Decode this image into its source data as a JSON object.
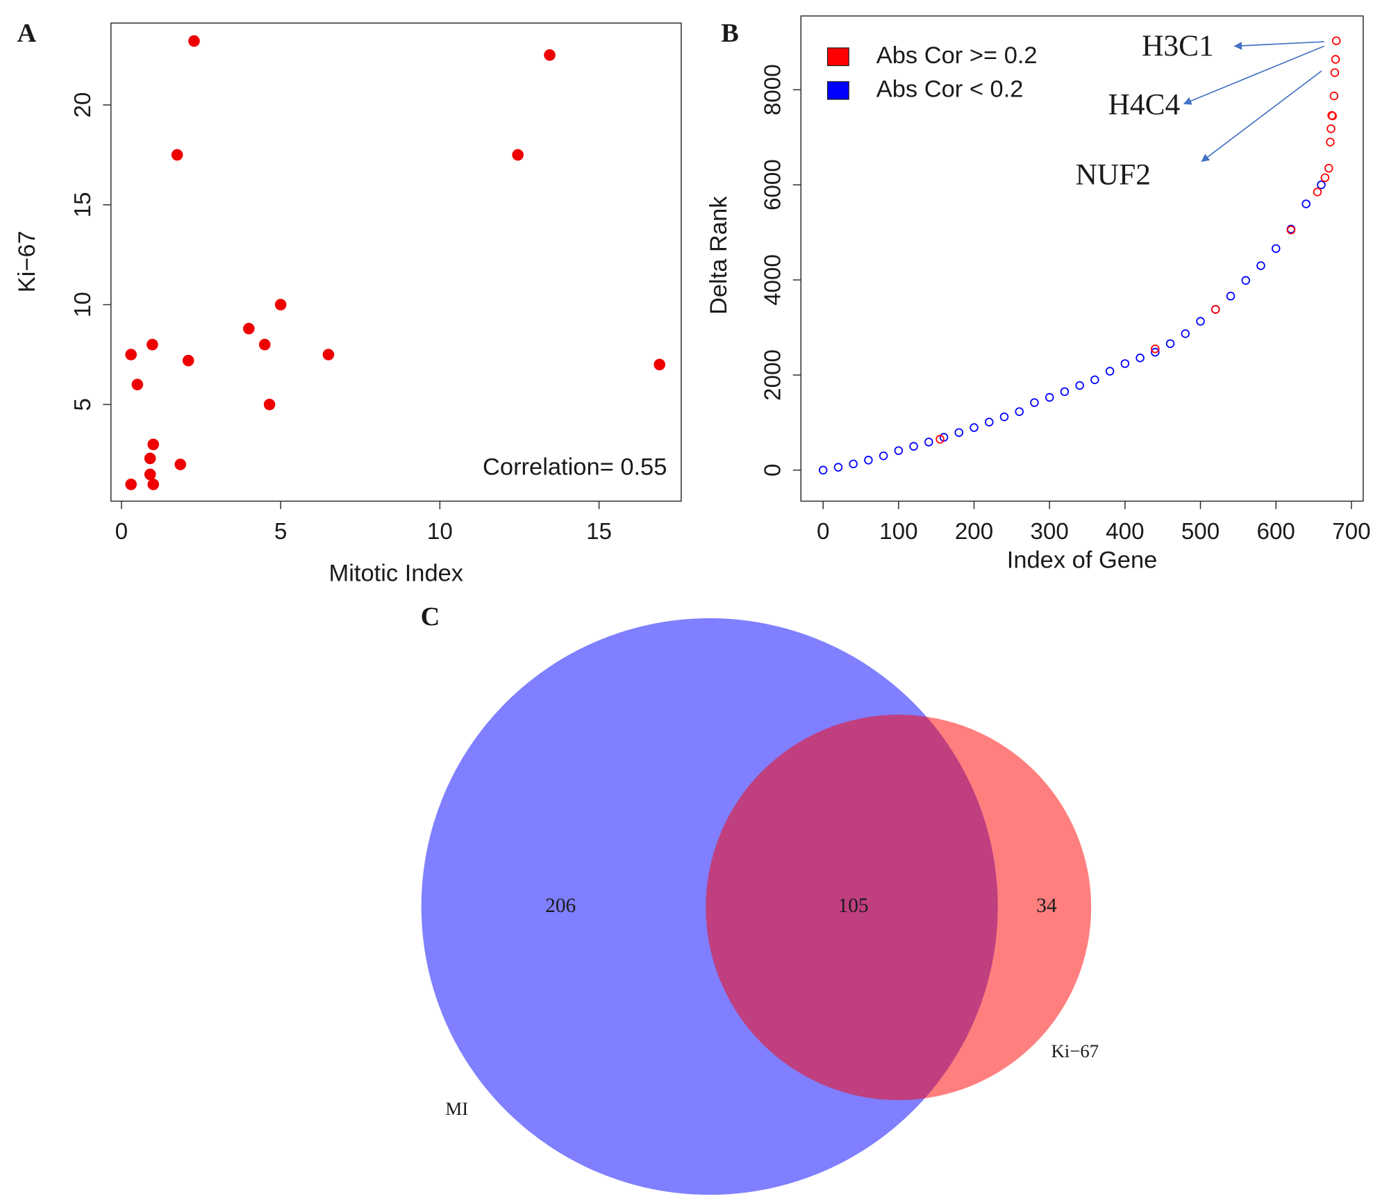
{
  "chart_data": [
    {
      "type": "scatter",
      "label": "A",
      "xlabel": "Mitotic Index",
      "ylabel": "Ki−67",
      "annotation": "Correlation= 0.55",
      "color": "#ee0000",
      "marker": "filled",
      "x": [
        2.28,
        13.45,
        12.45,
        1.75,
        5.0,
        4.0,
        4.5,
        0.97,
        0.3,
        6.5,
        2.1,
        16.9,
        0.5,
        4.65,
        1.0,
        0.9,
        1.85,
        0.9,
        0.3,
        1.0
      ],
      "values": [
        23.2,
        22.5,
        17.5,
        17.5,
        10.0,
        8.8,
        8.0,
        8.0,
        7.5,
        7.5,
        7.2,
        7.0,
        6.0,
        5.0,
        3.0,
        2.3,
        2.0,
        1.5,
        1.0,
        1.0
      ],
      "xlim": [
        -0.33,
        17.58
      ],
      "ylim": [
        0.16,
        24.1
      ],
      "xticks": [
        0,
        5,
        10,
        15
      ],
      "yticks": [
        5,
        10,
        15,
        20
      ]
    },
    {
      "type": "scatter",
      "label": "B",
      "xlabel": "Index of Gene",
      "ylabel": "Delta Rank",
      "marker": "open",
      "legend": "top-left",
      "series": [
        {
          "name": "Abs Cor < 0.2",
          "color": "#0000ff",
          "x": [
            0,
            20,
            40,
            60,
            80,
            100,
            120,
            140,
            160,
            180,
            200,
            220,
            240,
            260,
            280,
            300,
            320,
            340,
            360,
            380,
            400,
            420,
            440,
            460,
            480,
            500,
            520,
            540,
            560,
            580,
            600,
            620,
            640,
            660
          ],
          "values": [
            0,
            60,
            130,
            210,
            300,
            410,
            500,
            590,
            690,
            790,
            895,
            1010,
            1120,
            1230,
            1420,
            1530,
            1650,
            1780,
            1900,
            2080,
            2240,
            2360,
            2480,
            2660,
            2870,
            3130,
            3380,
            3660,
            3990,
            4300,
            4660,
            5070,
            5600,
            6000
          ]
        },
        {
          "name": "Abs Cor >= 0.2",
          "color": "#ff0000",
          "x": [
            155,
            440,
            520,
            620,
            655,
            665,
            670,
            672,
            673,
            674,
            675,
            677,
            678,
            679,
            680
          ],
          "values": [
            650,
            2550,
            3380,
            5050,
            5850,
            6150,
            6350,
            6900,
            7180,
            7460,
            7450,
            7870,
            8360,
            8640,
            9030
          ]
        }
      ],
      "annotations": [
        "H3C1",
        "H4C4",
        "NUF2"
      ],
      "xlim": [
        -29.4,
        715.6
      ],
      "ylim": [
        -653,
        9552
      ],
      "xticks": [
        0,
        100,
        200,
        300,
        400,
        500,
        600,
        700
      ],
      "yticks": [
        0,
        2000,
        4000,
        6000,
        8000
      ]
    },
    {
      "type": "venn",
      "label": "C",
      "sets": [
        {
          "name": "MI",
          "color": "#0000ff"
        },
        {
          "name": "Ki−67",
          "color": "#ff0000"
        }
      ],
      "values": [
        206,
        105,
        34
      ]
    }
  ]
}
